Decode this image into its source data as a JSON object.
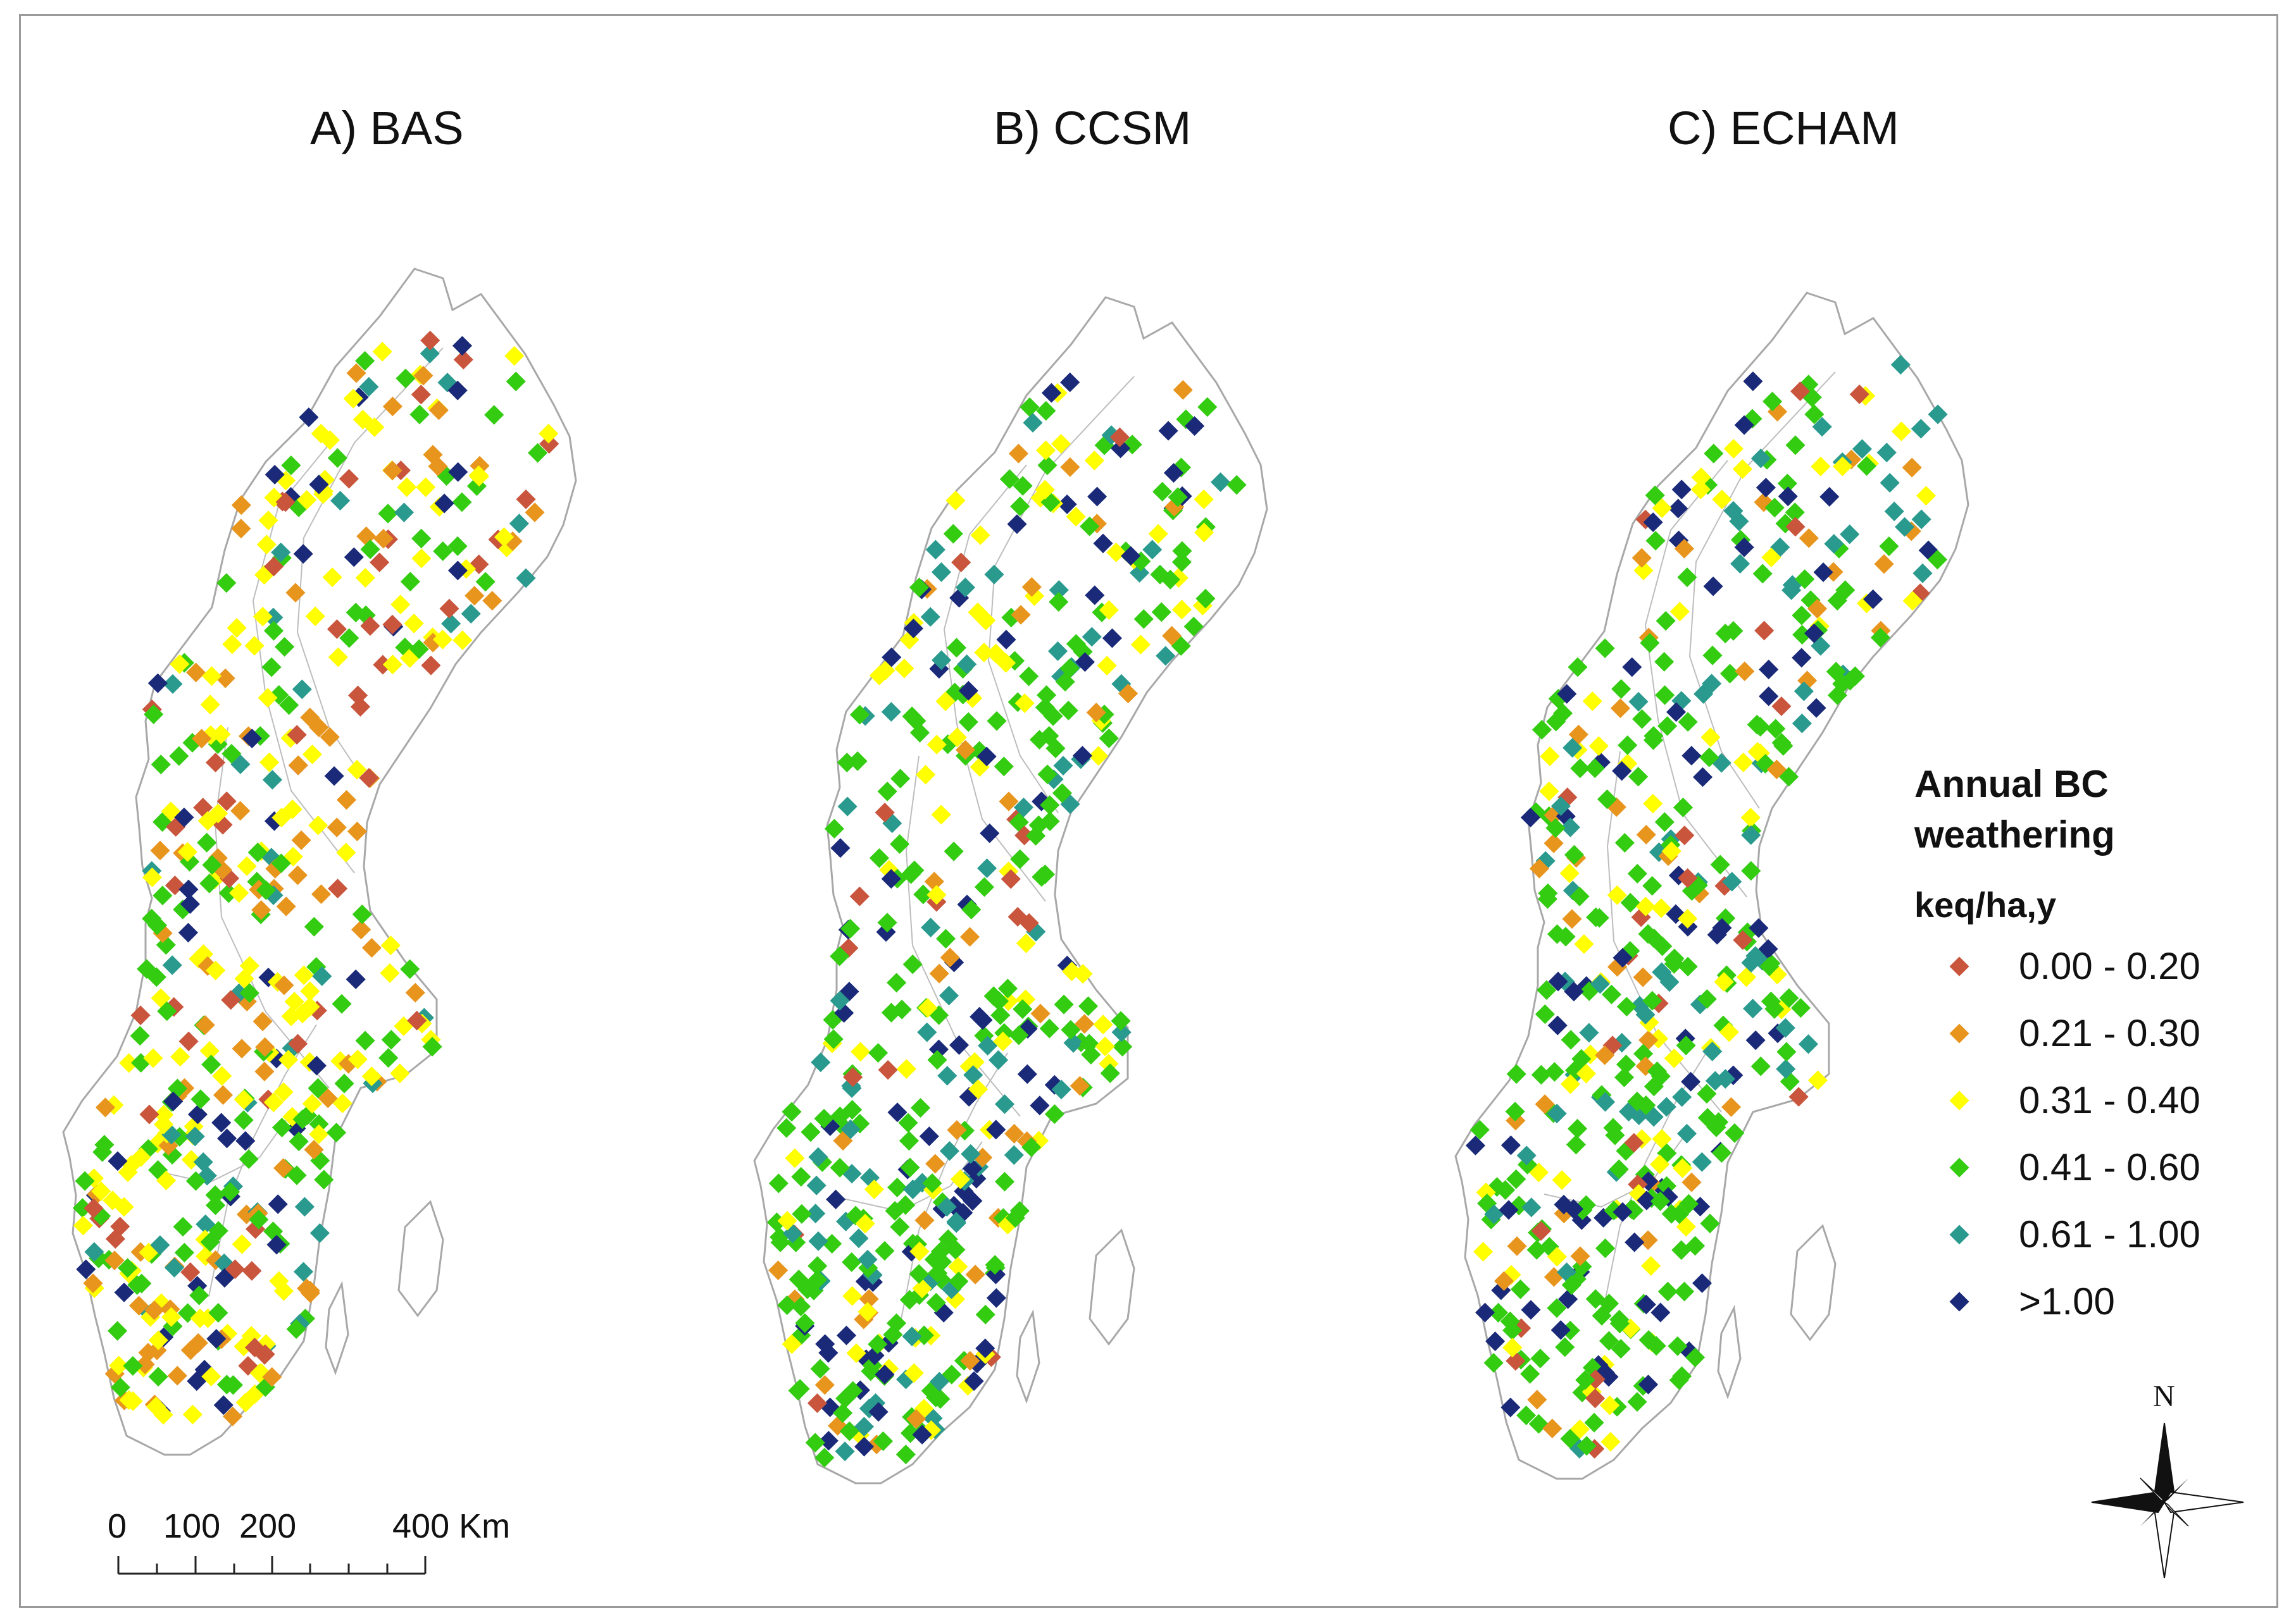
{
  "panels": [
    {
      "id": "bas",
      "title": "A) BAS"
    },
    {
      "id": "ccsm",
      "title": "B) CCSM"
    },
    {
      "id": "echam",
      "title": "C) ECHAM"
    }
  ],
  "legend": {
    "title_line1": "Annual BC",
    "title_line2": "weathering",
    "units": "keq/ha,y",
    "classes": [
      {
        "label": "0.00 - 0.20",
        "color": "#c8553c"
      },
      {
        "label": "0.21 - 0.30",
        "color": "#e8951e"
      },
      {
        "label": "0.31 - 0.40",
        "color": "#ffff00"
      },
      {
        "label": "0.41 - 0.60",
        "color": "#33cc11"
      },
      {
        "label": "0.61 - 1.00",
        "color": "#2a9a8e"
      },
      {
        "label": ">1.00",
        "color": "#1a2a78"
      }
    ]
  },
  "scale_bar": {
    "labels": [
      "0",
      "100",
      "200",
      "400 Km"
    ]
  },
  "north_arrow": {
    "label": "N"
  },
  "map_weights": {
    "bas": [
      0.11,
      0.18,
      0.27,
      0.24,
      0.1,
      0.1
    ],
    "ccsm": [
      0.04,
      0.06,
      0.16,
      0.44,
      0.15,
      0.15
    ],
    "echam": [
      0.05,
      0.08,
      0.18,
      0.43,
      0.13,
      0.13
    ]
  }
}
